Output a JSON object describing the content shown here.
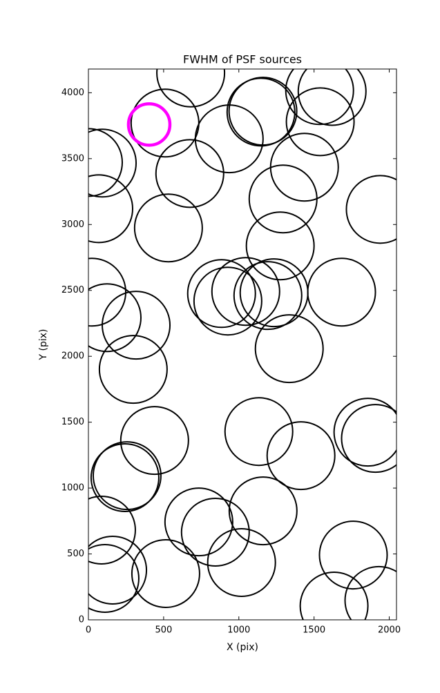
{
  "chart_data": {
    "type": "scatter",
    "title": "FWHM of PSF sources",
    "xlabel": "X (pix)",
    "ylabel": "Y (pix)",
    "xlim": [
      0,
      2048
    ],
    "ylim": [
      0,
      4180
    ],
    "xticks": [
      0,
      500,
      1000,
      1500,
      2000
    ],
    "yticks": [
      0,
      500,
      1000,
      1500,
      2000,
      2500,
      3000,
      3500,
      4000
    ],
    "series": [
      {
        "color": "#000000",
        "x": [
          680,
          509,
          936,
          1147,
          1160,
          1537,
          1620,
          1541,
          1436,
          1294,
          1275,
          1940,
          674,
          532,
          92,
          0,
          69,
          23,
          124,
          317,
          298,
          885,
          927,
          1046,
          1193,
          1234,
          1335,
          1683,
          1133,
          1413,
          1858,
          1908,
          440,
          243,
          257,
          87,
          161,
          110,
          514,
          734,
          844,
          1161,
          1018,
          1761,
          1633,
          1931
        ],
        "values": [
          4150,
          3770,
          3650,
          3853,
          3860,
          4016,
          4010,
          3780,
          3435,
          3194,
          2838,
          3115,
          3387,
          2974,
          3466,
          3471,
          3120,
          2487,
          2293,
          2236,
          1901,
          2476,
          2419,
          2492,
          2461,
          2482,
          2058,
          2487,
          1429,
          1246,
          1424,
          1377,
          1361,
          1079,
          1094,
          681,
          377,
          314,
          351,
          743,
          665,
          827,
          435,
          492,
          105,
          147
        ]
      },
      {
        "color": "#ff00ff",
        "x": [
          404
        ],
        "values": [
          3759
        ]
      }
    ]
  }
}
